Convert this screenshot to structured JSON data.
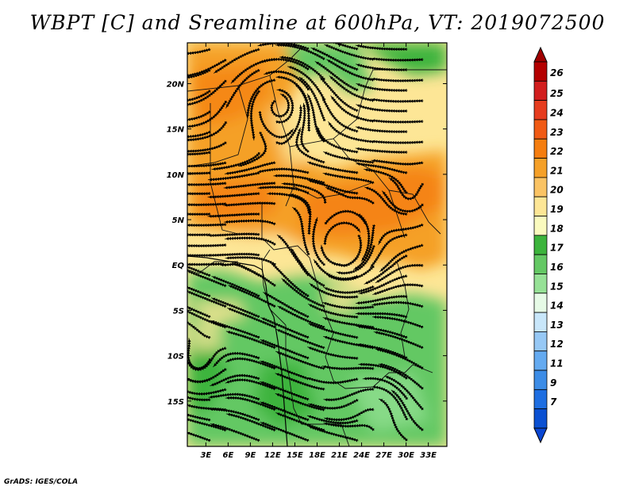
{
  "title": "WBPT [C] and Sreamline at 600hPa, VT: 2019072500",
  "credit": "GrADS: IGES/COLA",
  "map": {
    "variable": "WBPT",
    "units": "C",
    "level": "600hPa",
    "valid_time": "2019072500",
    "lon_labels": [
      "3E",
      "6E",
      "9E",
      "12E",
      "15E",
      "18E",
      "21E",
      "24E",
      "27E",
      "30E",
      "33E"
    ],
    "lat_labels": [
      "20N",
      "15N",
      "10N",
      "5N",
      "EQ",
      "5S",
      "10S",
      "15S"
    ],
    "lon_values": [
      3,
      6,
      9,
      12,
      15,
      18,
      21,
      24,
      27,
      30,
      33
    ],
    "lat_values": [
      20,
      15,
      10,
      5,
      0,
      -5,
      -10,
      -15
    ],
    "lon_range": [
      0.5,
      35.5
    ],
    "lat_range": [
      -20,
      24.5
    ]
  },
  "colorbar": {
    "labels": [
      "26",
      "25",
      "24",
      "23",
      "22",
      "21",
      "20",
      "19",
      "18",
      "17",
      "16",
      "15",
      "14",
      "13",
      "12",
      "11",
      "9",
      "7"
    ],
    "colors": [
      "#b40000",
      "#d21e1e",
      "#e63c1e",
      "#f05a14",
      "#f57d0f",
      "#f5a028",
      "#fac364",
      "#fde696",
      "#fafabe",
      "#3cb43c",
      "#64c864",
      "#96e196",
      "#e6fae6",
      "#c8e6fa",
      "#96c8f5",
      "#64aaf0",
      "#3c8ce6",
      "#1e6ee1",
      "#0a50d2"
    ],
    "top_color": "#a00000",
    "bottom_color": "#0a46d2"
  }
}
